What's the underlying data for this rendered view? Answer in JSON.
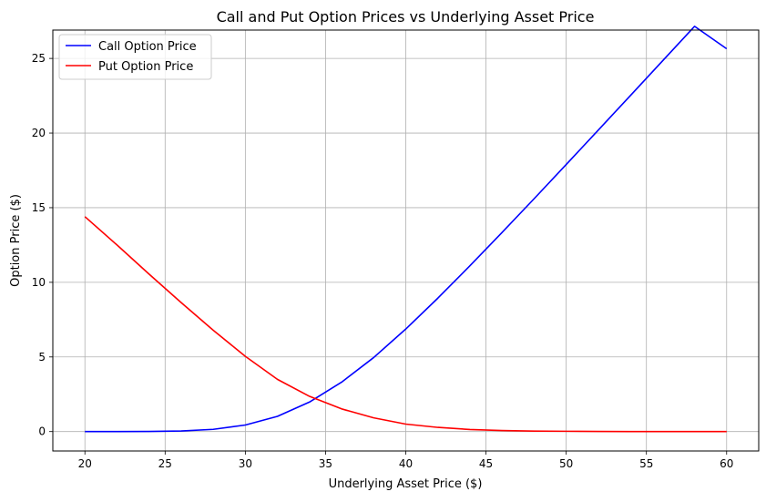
{
  "chart_data": {
    "type": "line",
    "title": "Call and Put Option Prices vs Underlying Asset Price",
    "xlabel": "Underlying Asset Price ($)",
    "ylabel": "Option Price ($)",
    "xlim": [
      18,
      62
    ],
    "ylim": [
      -1.3,
      26.9
    ],
    "xticks": [
      20,
      25,
      30,
      35,
      40,
      45,
      50,
      55,
      60
    ],
    "yticks": [
      0,
      5,
      10,
      15,
      20,
      25
    ],
    "grid": true,
    "legend_position": "top-left",
    "x": [
      20,
      22,
      24,
      26,
      28,
      30,
      32,
      34,
      36,
      38,
      40,
      42,
      44,
      46,
      48,
      50,
      52,
      54,
      56,
      58,
      60
    ],
    "series": [
      {
        "name": "Call Option Price",
        "color": "#0000ff",
        "values": [
          0.0,
          0.0,
          0.01,
          0.04,
          0.15,
          0.44,
          1.02,
          1.98,
          3.31,
          4.96,
          6.87,
          8.94,
          11.11,
          13.34,
          15.6,
          17.89,
          20.2,
          22.51,
          24.83,
          27.15,
          25.65
        ]
      },
      {
        "name": "Put Option Price",
        "color": "#ff0000",
        "values": [
          14.4,
          12.5,
          10.55,
          8.64,
          6.79,
          5.04,
          3.5,
          2.36,
          1.52,
          0.92,
          0.5,
          0.28,
          0.14,
          0.07,
          0.03,
          0.02,
          0.01,
          0.0,
          0.0,
          0.0,
          0.0
        ]
      }
    ]
  }
}
